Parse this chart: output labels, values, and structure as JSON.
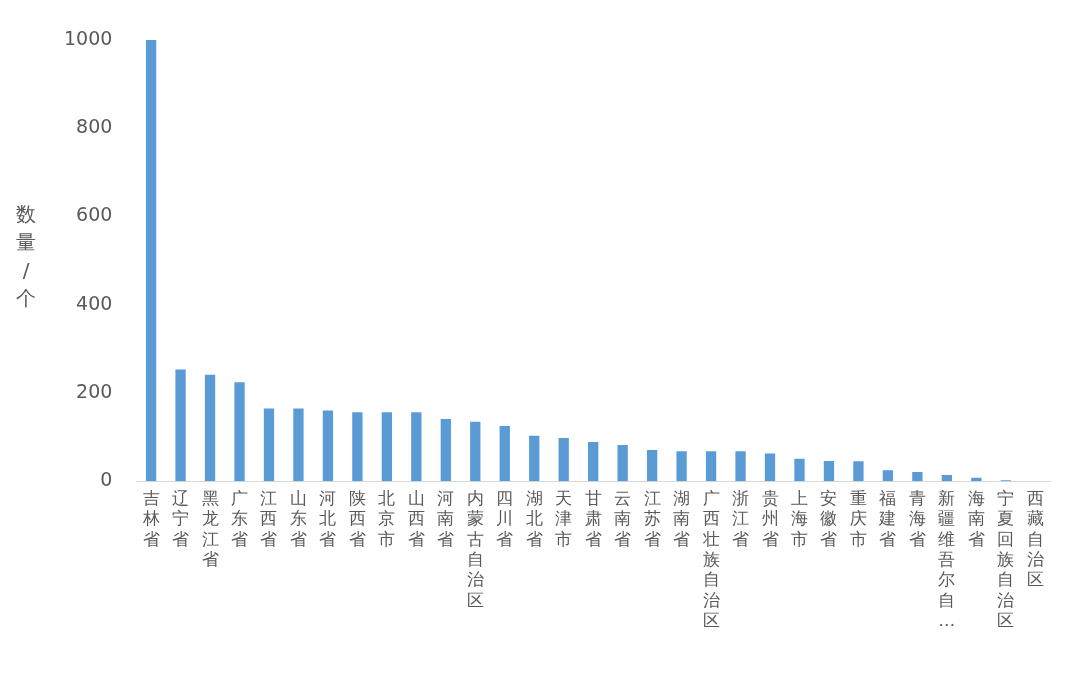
{
  "chart_data": {
    "type": "bar",
    "ylabel": "数量/个",
    "categories": [
      "吉林省",
      "辽宁省",
      "黑龙江省",
      "广东省",
      "江西省",
      "山东省",
      "河北省",
      "陕西省",
      "北京市",
      "山西省",
      "河南省",
      "内蒙古自治区",
      "四川省",
      "湖北省",
      "天津市",
      "甘肃省",
      "云南省",
      "江苏省",
      "湖南省",
      "广西壮族自治区",
      "浙江省",
      "贵州省",
      "上海市",
      "安徽省",
      "重庆市",
      "福建省",
      "青海省",
      "新疆维吾尔自…",
      "海南省",
      "宁夏回族自治区",
      "西藏自治区"
    ],
    "values": [
      1000,
      253,
      241,
      224,
      165,
      165,
      160,
      156,
      156,
      156,
      141,
      135,
      125,
      103,
      98,
      89,
      82,
      71,
      68,
      68,
      68,
      63,
      51,
      46,
      45,
      25,
      21,
      14,
      8,
      2,
      0
    ],
    "color": "#5b9bd5",
    "ylim": [
      0,
      1000
    ],
    "yticks": [
      0,
      200,
      400,
      600,
      800,
      1000
    ],
    "grid": false,
    "legend": false
  }
}
